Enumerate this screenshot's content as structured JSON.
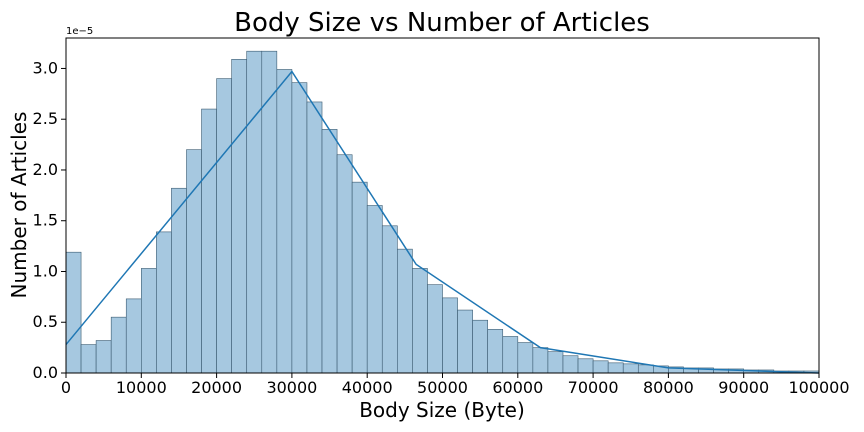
{
  "chart_data": {
    "type": "histogram",
    "title": "Body Size vs Number of Articles",
    "xlabel": "Body Size (Byte)",
    "ylabel": "Number of Articles",
    "y_offset_label": "1e−5",
    "xlim": [
      0,
      100000
    ],
    "ylim": [
      0,
      3.3
    ],
    "x_ticks": [
      0,
      10000,
      20000,
      30000,
      40000,
      50000,
      60000,
      70000,
      80000,
      90000,
      100000
    ],
    "x_tick_labels": [
      "0",
      "10000",
      "20000",
      "30000",
      "40000",
      "50000",
      "60000",
      "70000",
      "80000",
      "90000",
      "100000"
    ],
    "y_ticks": [
      0.0,
      0.5,
      1.0,
      1.5,
      2.0,
      2.5,
      3.0
    ],
    "y_tick_labels": [
      "0.0",
      "0.5",
      "1.0",
      "1.5",
      "2.0",
      "2.5",
      "3.0"
    ],
    "bin_width": 2000,
    "bins_start": 0,
    "bin_values": [
      1.19,
      0.28,
      0.32,
      0.55,
      0.73,
      1.03,
      1.39,
      1.82,
      2.2,
      2.6,
      2.9,
      3.09,
      3.17,
      3.17,
      2.99,
      2.86,
      2.67,
      2.4,
      2.15,
      1.88,
      1.65,
      1.45,
      1.22,
      1.03,
      0.87,
      0.74,
      0.62,
      0.52,
      0.43,
      0.36,
      0.3,
      0.25,
      0.21,
      0.17,
      0.14,
      0.12,
      0.1,
      0.09,
      0.08,
      0.07,
      0.06,
      0.05,
      0.05,
      0.04,
      0.04,
      0.03,
      0.03,
      0.02,
      0.02,
      0.02
    ],
    "series": [
      {
        "type": "line",
        "x": [
          0,
          30000,
          46500,
          63000,
          80000,
          100000
        ],
        "y": [
          0.28,
          2.97,
          1.07,
          0.25,
          0.05,
          0.0
        ]
      }
    ],
    "bar_color": "#a6c8e0",
    "bar_edge_color": "#3a5a70",
    "line_color": "#1f77b4",
    "grid": false,
    "legend": "none"
  }
}
